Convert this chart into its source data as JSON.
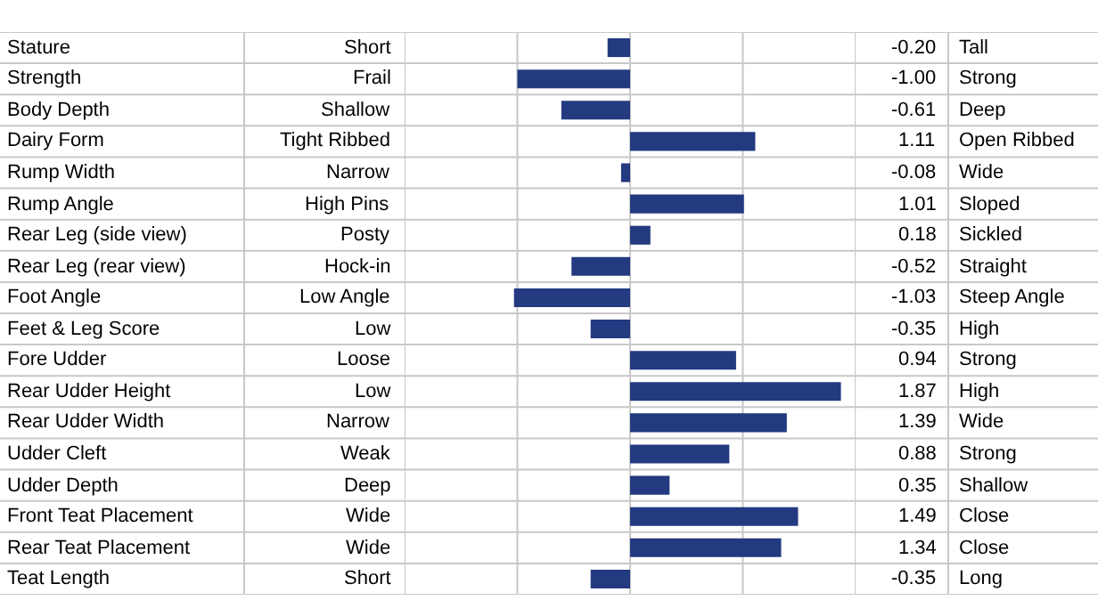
{
  "chart_data": {
    "type": "bar",
    "orientation": "horizontal",
    "categories": [
      "Stature",
      "Strength",
      "Body Depth",
      "Dairy Form",
      "Rump Width",
      "Rump Angle",
      "Rear Leg (side view)",
      "Rear Leg (rear view)",
      "Foot Angle",
      "Feet & Leg Score",
      "Fore Udder",
      "Rear Udder Height",
      "Rear Udder Width",
      "Udder Cleft",
      "Udder Depth",
      "Front Teat Placement",
      "Rear Teat Placement",
      "Teat Length"
    ],
    "values": [
      -0.2,
      -1.0,
      -0.61,
      1.11,
      -0.08,
      1.01,
      0.18,
      -0.52,
      -1.03,
      -0.35,
      0.94,
      1.87,
      1.39,
      0.88,
      0.35,
      1.49,
      1.34,
      -0.35
    ],
    "value_labels": [
      "-0.20",
      "-1.00",
      "-0.61",
      "1.11",
      "-0.08",
      "1.01",
      "0.18",
      "-0.52",
      "-1.03",
      "-0.35",
      "0.94",
      "1.87",
      "1.39",
      "0.88",
      "0.35",
      "1.49",
      "1.34",
      "-0.35"
    ],
    "color": "#233a80",
    "tick_labels": "y",
    "annotations": [
      "Short",
      "Tall",
      "Frail",
      "Strong",
      "Shallow",
      "Deep",
      "Tight Ribbed",
      "Open Ribbed",
      "Narrow",
      "Wide",
      "High Pins",
      "Sloped",
      "Posty",
      "Sickled",
      "Hock-in",
      "Straight",
      "Low Angle",
      "Steep Angle",
      "Low",
      "High",
      "Loose",
      "Strong",
      "Low",
      "High",
      "Narrow",
      "Wide",
      "Weak",
      "Strong",
      "Deep",
      "Shallow",
      "Wide",
      "Close",
      "Wide",
      "Close",
      "Short",
      "Long"
    ]
  }
}
